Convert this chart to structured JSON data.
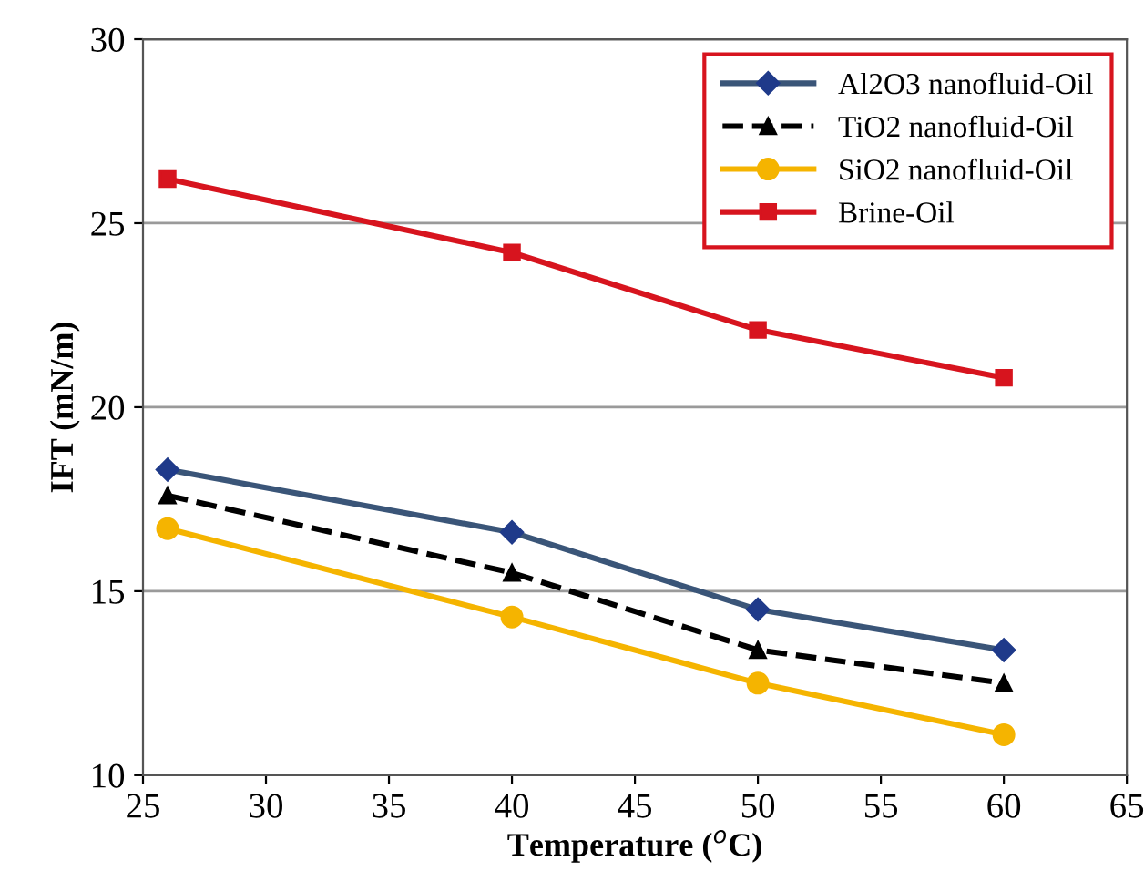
{
  "chart_data": {
    "type": "line",
    "xlabel": "Temperature ($^{o}$C)",
    "ylabel": "IFT (mN/m)",
    "x": [
      26,
      40,
      50,
      60
    ],
    "series": [
      {
        "name": "Al2O3 nanofluid-Oil",
        "color": "#3a5578",
        "marker": "diamond",
        "line_style": "solid",
        "values": [
          18.3,
          16.6,
          14.5,
          13.4
        ]
      },
      {
        "name": "TiO2 nanofluid-Oil",
        "color": "#000000",
        "marker": "triangle",
        "line_style": "dashed",
        "values": [
          17.6,
          15.5,
          13.4,
          12.5
        ]
      },
      {
        "name": "SiO2 nanofluid-Oil",
        "color": "#f5b400",
        "marker": "circle",
        "line_style": "solid",
        "values": [
          16.7,
          14.3,
          12.5,
          11.1
        ]
      },
      {
        "name": "Brine-Oil",
        "color": "#d7141e",
        "marker": "square",
        "line_style": "solid",
        "values": [
          26.2,
          24.2,
          22.1,
          20.8
        ]
      }
    ],
    "xlim": [
      25,
      65
    ],
    "xticks": [
      25,
      30,
      35,
      40,
      45,
      50,
      55,
      60,
      65
    ],
    "ylim": [
      10,
      30
    ],
    "yticks": [
      10,
      15,
      20,
      25,
      30
    ],
    "grid": "y",
    "legend": "top right"
  }
}
